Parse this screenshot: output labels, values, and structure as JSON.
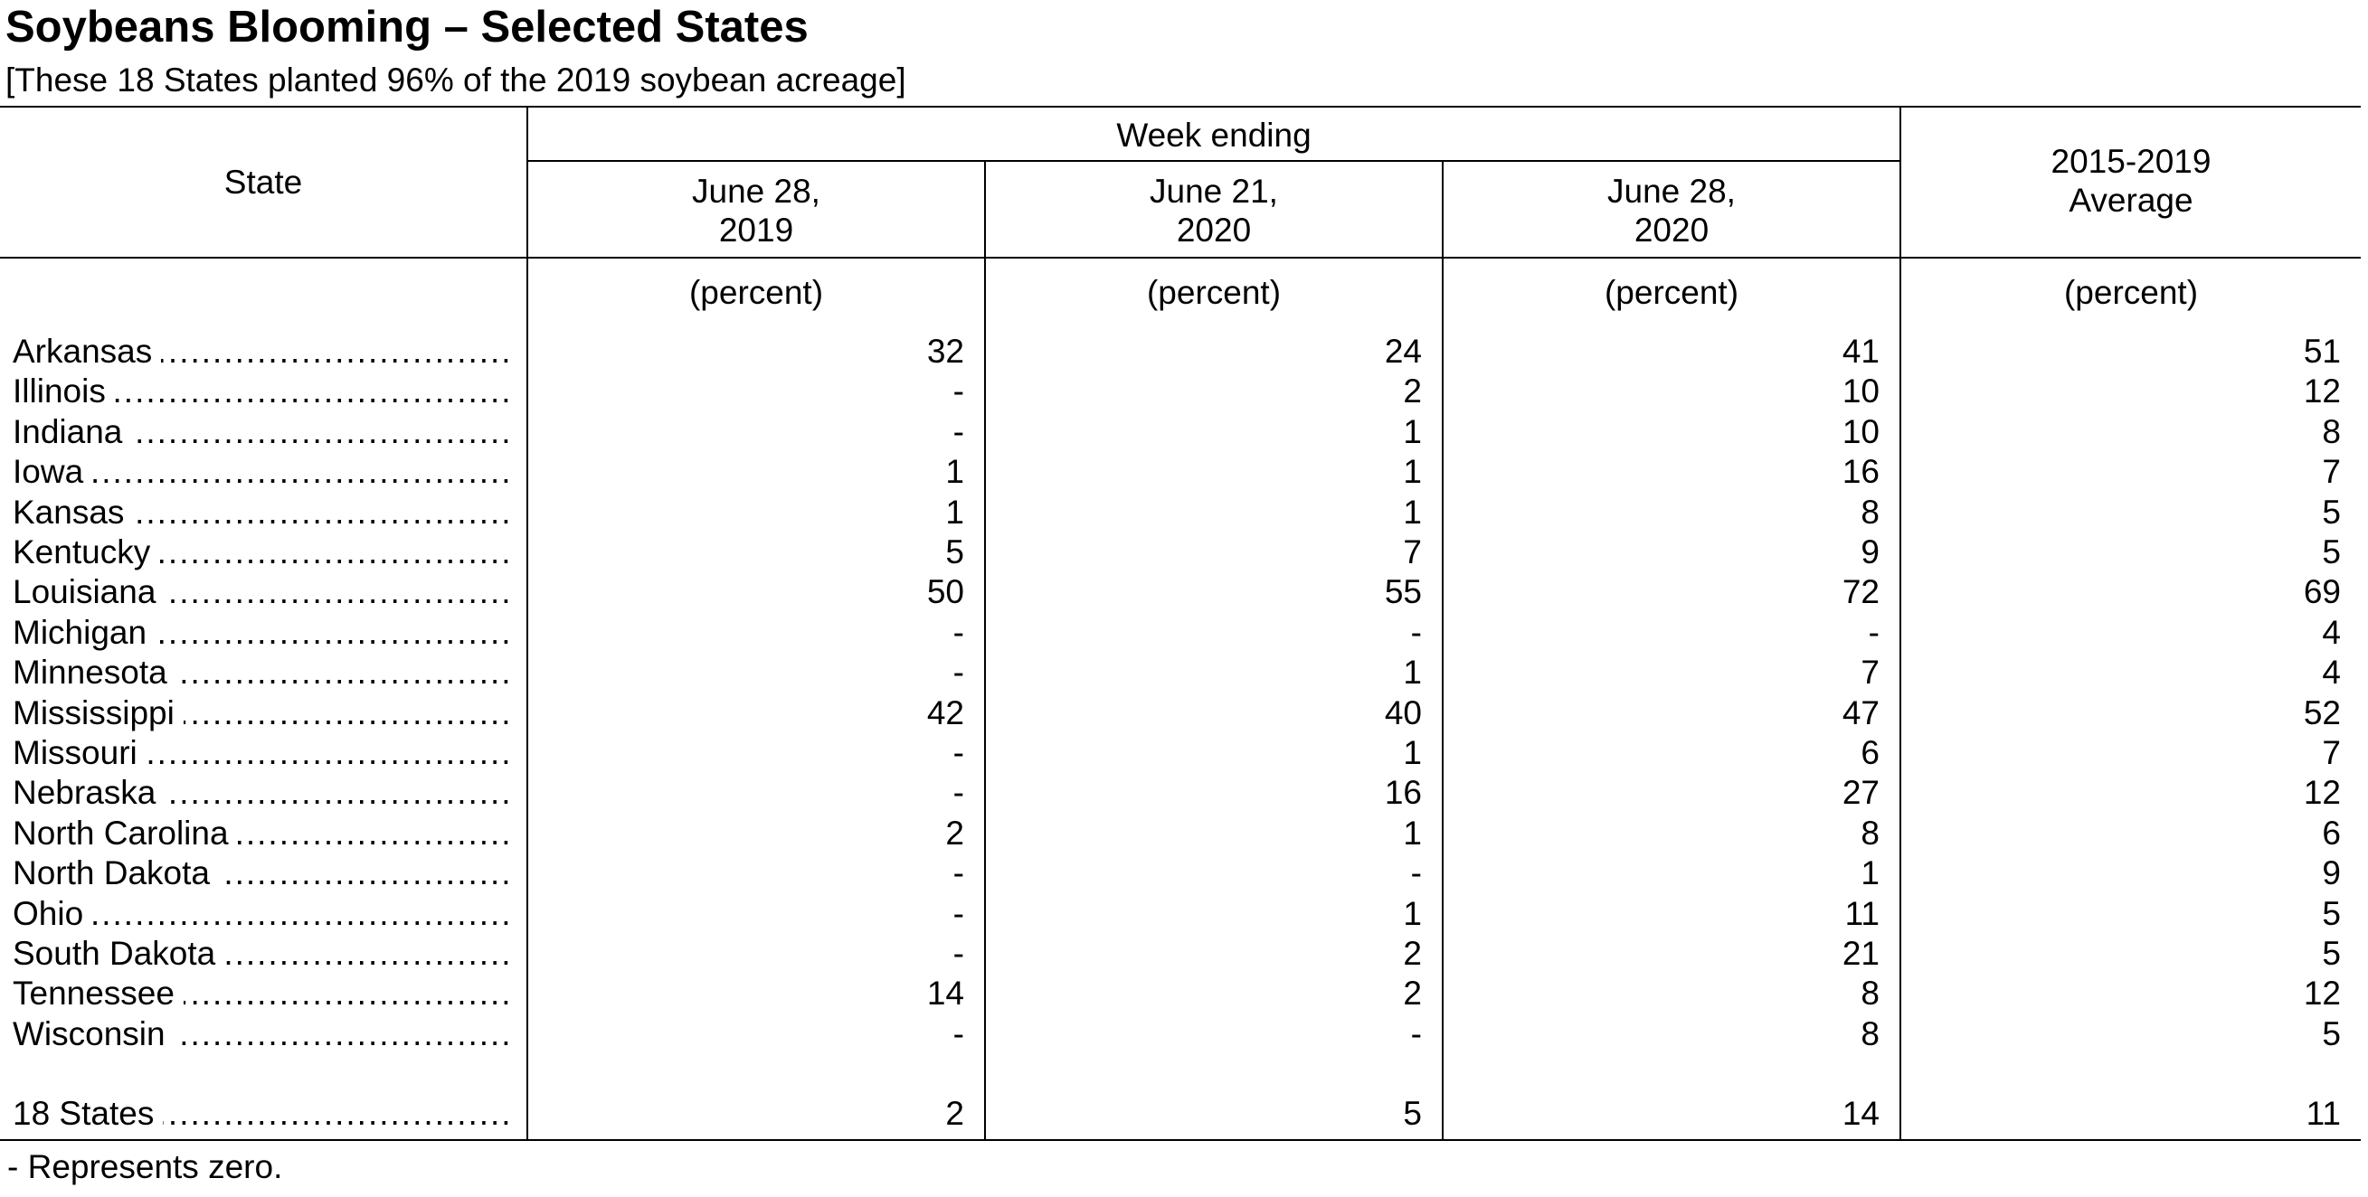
{
  "title": "Soybeans Blooming – Selected States",
  "subtitle": "[These 18 States planted 96% of the 2019 soybean acreage]",
  "header": {
    "state": "State",
    "week_ending": "Week ending",
    "col1_line1": "June 28,",
    "col1_line2": "2019",
    "col2_line1": "June 21,",
    "col2_line2": "2020",
    "col3_line1": "June 28,",
    "col3_line2": "2020",
    "col4_line1": "2015-2019",
    "col4_line2": "Average",
    "unit": "(percent)"
  },
  "rows": [
    {
      "state": "Arkansas",
      "v": [
        "32",
        "24",
        "41",
        "51"
      ]
    },
    {
      "state": "Illinois",
      "v": [
        "-",
        "2",
        "10",
        "12"
      ]
    },
    {
      "state": "Indiana",
      "v": [
        "-",
        "1",
        "10",
        "8"
      ]
    },
    {
      "state": "Iowa",
      "v": [
        "1",
        "1",
        "16",
        "7"
      ]
    },
    {
      "state": "Kansas",
      "v": [
        "1",
        "1",
        "8",
        "5"
      ]
    },
    {
      "state": "Kentucky",
      "v": [
        "5",
        "7",
        "9",
        "5"
      ]
    },
    {
      "state": "Louisiana",
      "v": [
        "50",
        "55",
        "72",
        "69"
      ]
    },
    {
      "state": "Michigan",
      "v": [
        "-",
        "-",
        "-",
        "4"
      ]
    },
    {
      "state": "Minnesota",
      "v": [
        "-",
        "1",
        "7",
        "4"
      ]
    },
    {
      "state": "Mississippi",
      "v": [
        "42",
        "40",
        "47",
        "52"
      ]
    },
    {
      "state": "Missouri",
      "v": [
        "-",
        "1",
        "6",
        "7"
      ]
    },
    {
      "state": "Nebraska",
      "v": [
        "-",
        "16",
        "27",
        "12"
      ]
    },
    {
      "state": "North Carolina",
      "v": [
        "2",
        "1",
        "8",
        "6"
      ]
    },
    {
      "state": "North Dakota",
      "v": [
        "-",
        "-",
        "1",
        "9"
      ]
    },
    {
      "state": "Ohio",
      "v": [
        "-",
        "1",
        "11",
        "5"
      ]
    },
    {
      "state": "South Dakota",
      "v": [
        "-",
        "2",
        "21",
        "5"
      ]
    },
    {
      "state": "Tennessee",
      "v": [
        "14",
        "2",
        "8",
        "12"
      ]
    },
    {
      "state": "Wisconsin",
      "v": [
        "-",
        "-",
        "8",
        "5"
      ]
    }
  ],
  "total": {
    "state": "18 States",
    "v": [
      "2",
      "5",
      "14",
      "11"
    ]
  },
  "footnote": "- Represents zero."
}
